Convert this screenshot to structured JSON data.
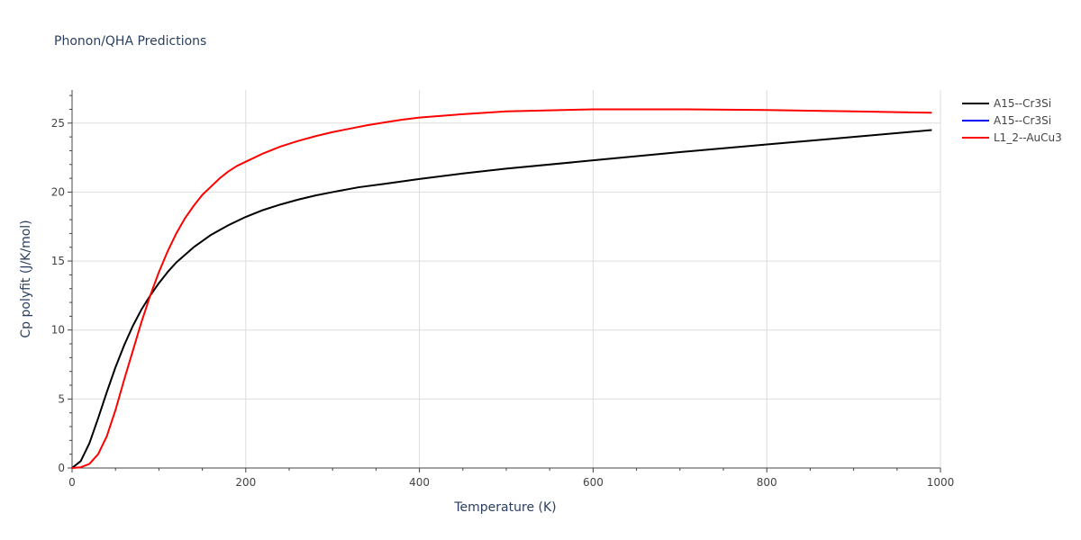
{
  "chart_data": {
    "type": "line",
    "title": "Phonon/QHA Predictions",
    "xlabel": "Temperature (K)",
    "ylabel": "Cp polyfit (J/K/mol)",
    "xlim": [
      0,
      1000
    ],
    "ylim": [
      0,
      27.4
    ],
    "xticks": [
      0,
      200,
      400,
      600,
      800,
      1000
    ],
    "yticks": [
      0,
      5,
      10,
      15,
      20,
      25
    ],
    "grid": true,
    "legend_position": "top-right",
    "series": [
      {
        "name": "A15--Cr3Si",
        "color": "#000000",
        "x": [
          0,
          10,
          20,
          30,
          40,
          50,
          60,
          70,
          80,
          90,
          100,
          110,
          120,
          140,
          160,
          180,
          200,
          220,
          240,
          260,
          280,
          300,
          330,
          360,
          400,
          450,
          500,
          600,
          700,
          800,
          900,
          990
        ],
        "y": [
          0,
          0.5,
          1.8,
          3.6,
          5.5,
          7.3,
          8.9,
          10.3,
          11.5,
          12.5,
          13.4,
          14.2,
          14.9,
          16.0,
          16.9,
          17.6,
          18.2,
          18.7,
          19.1,
          19.45,
          19.75,
          20.0,
          20.35,
          20.6,
          20.95,
          21.35,
          21.7,
          22.3,
          22.9,
          23.45,
          24.0,
          24.5
        ]
      },
      {
        "name": "A15--Cr3Si",
        "color": "#0000ff",
        "x": [],
        "y": []
      },
      {
        "name": "L1_2--AuCu3",
        "color": "#ff0000",
        "x": [
          0,
          10,
          20,
          30,
          40,
          50,
          60,
          70,
          80,
          90,
          100,
          110,
          120,
          130,
          140,
          150,
          160,
          170,
          180,
          190,
          200,
          220,
          240,
          260,
          280,
          300,
          320,
          340,
          360,
          380,
          400,
          450,
          500,
          600,
          700,
          800,
          900,
          990
        ],
        "y": [
          0,
          0.05,
          0.3,
          1.0,
          2.3,
          4.2,
          6.4,
          8.5,
          10.6,
          12.5,
          14.2,
          15.7,
          17.0,
          18.1,
          19.0,
          19.8,
          20.4,
          21.0,
          21.5,
          21.9,
          22.2,
          22.8,
          23.3,
          23.7,
          24.05,
          24.35,
          24.6,
          24.85,
          25.05,
          25.25,
          25.4,
          25.65,
          25.85,
          26.0,
          26.0,
          25.95,
          25.85,
          25.75
        ]
      }
    ]
  }
}
